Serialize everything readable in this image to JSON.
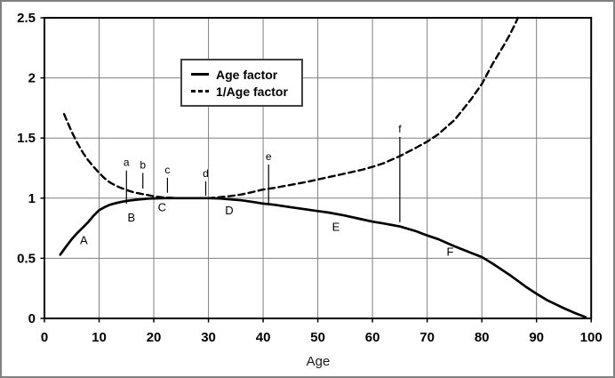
{
  "window": {
    "background": "#ffffff",
    "outer_border_color": "#808080"
  },
  "colors": {
    "gridline": "#808080",
    "frame": "#000000",
    "curve": "#000000",
    "text": "#000000"
  },
  "chart_data": {
    "type": "line",
    "title": "",
    "xlabel": "Age",
    "ylabel": "",
    "xlim": [
      0,
      100
    ],
    "ylim": [
      0,
      2.5
    ],
    "grid": true,
    "x_tick_labels": [
      "0",
      "10",
      "20",
      "30",
      "40",
      "50",
      "60",
      "70",
      "80",
      "90",
      "100"
    ],
    "x_tick_values": [
      0,
      10,
      20,
      30,
      40,
      50,
      60,
      70,
      80,
      90,
      100
    ],
    "y_tick_labels": [
      "0",
      "0.5",
      "1",
      "1.5",
      "2",
      "2.5"
    ],
    "y_tick_values": [
      0,
      0.5,
      1,
      1.5,
      2,
      2.5
    ],
    "legend": {
      "position": "top-center-inside",
      "items": [
        {
          "label": "Age factor",
          "style": "solid"
        },
        {
          "label": "1/Age factor",
          "style": "dashed"
        }
      ]
    },
    "series": [
      {
        "name": "Age factor",
        "style": "solid",
        "points": [
          [
            2.9,
            0.53
          ],
          [
            4,
            0.6
          ],
          [
            5,
            0.66
          ],
          [
            6,
            0.71
          ],
          [
            7,
            0.755
          ],
          [
            8,
            0.8
          ],
          [
            9,
            0.855
          ],
          [
            10,
            0.9
          ],
          [
            11,
            0.925
          ],
          [
            12,
            0.945
          ],
          [
            13,
            0.958
          ],
          [
            14,
            0.968
          ],
          [
            15,
            0.976
          ],
          [
            16,
            0.983
          ],
          [
            17,
            0.988
          ],
          [
            18,
            0.992
          ],
          [
            19,
            0.996
          ],
          [
            20,
            0.998
          ],
          [
            22,
            1.0
          ],
          [
            25,
            1.0
          ],
          [
            30,
            1.0
          ],
          [
            32,
            0.998
          ],
          [
            34,
            0.99
          ],
          [
            36,
            0.982
          ],
          [
            38,
            0.97
          ],
          [
            40,
            0.955
          ],
          [
            42,
            0.945
          ],
          [
            45,
            0.925
          ],
          [
            48,
            0.905
          ],
          [
            50,
            0.893
          ],
          [
            52,
            0.88
          ],
          [
            55,
            0.855
          ],
          [
            58,
            0.825
          ],
          [
            60,
            0.805
          ],
          [
            62,
            0.79
          ],
          [
            65,
            0.765
          ],
          [
            68,
            0.725
          ],
          [
            70,
            0.69
          ],
          [
            72,
            0.66
          ],
          [
            75,
            0.6
          ],
          [
            78,
            0.545
          ],
          [
            80,
            0.51
          ],
          [
            82,
            0.455
          ],
          [
            85,
            0.365
          ],
          [
            88,
            0.265
          ],
          [
            90,
            0.205
          ],
          [
            92,
            0.15
          ],
          [
            95,
            0.085
          ],
          [
            97,
            0.045
          ],
          [
            99,
            0.01
          ]
        ]
      },
      {
        "name": "1/Age factor",
        "style": "dashed",
        "points": [
          [
            3.6,
            1.7
          ],
          [
            4,
            1.655
          ],
          [
            5,
            1.55
          ],
          [
            6,
            1.46
          ],
          [
            7,
            1.38
          ],
          [
            8,
            1.315
          ],
          [
            9,
            1.26
          ],
          [
            10,
            1.21
          ],
          [
            11,
            1.165
          ],
          [
            12,
            1.13
          ],
          [
            13,
            1.105
          ],
          [
            14,
            1.085
          ],
          [
            15,
            1.068
          ],
          [
            16,
            1.053
          ],
          [
            17,
            1.042
          ],
          [
            18,
            1.033
          ],
          [
            19,
            1.025
          ],
          [
            20,
            1.015
          ],
          [
            21,
            1.01
          ],
          [
            22,
            1.005
          ],
          [
            25,
            1.0
          ],
          [
            30,
            1.0
          ],
          [
            32,
            1.008
          ],
          [
            34,
            1.018
          ],
          [
            36,
            1.03
          ],
          [
            38,
            1.05
          ],
          [
            40,
            1.072
          ],
          [
            42,
            1.085
          ],
          [
            45,
            1.11
          ],
          [
            48,
            1.135
          ],
          [
            50,
            1.155
          ],
          [
            52,
            1.175
          ],
          [
            55,
            1.205
          ],
          [
            58,
            1.235
          ],
          [
            60,
            1.26
          ],
          [
            62,
            1.29
          ],
          [
            65,
            1.35
          ],
          [
            68,
            1.42
          ],
          [
            70,
            1.47
          ],
          [
            72,
            1.53
          ],
          [
            75,
            1.65
          ],
          [
            78,
            1.82
          ],
          [
            80,
            1.95
          ],
          [
            82,
            2.12
          ],
          [
            84,
            2.27
          ],
          [
            85,
            2.35
          ],
          [
            86,
            2.44
          ],
          [
            86.6,
            2.5
          ]
        ]
      }
    ],
    "point_markers": [
      {
        "label": "a",
        "x": 15,
        "y_top": 1.23,
        "y_bottom": 0.955
      },
      {
        "label": "b",
        "x": 18,
        "y_top": 1.21,
        "y_bottom": 1.08
      },
      {
        "label": "c",
        "x": 22.5,
        "y_top": 1.17,
        "y_bottom": 1.045
      },
      {
        "label": "d",
        "x": 29.5,
        "y_top": 1.14,
        "y_bottom": 1.02
      },
      {
        "label": "e",
        "x": 41,
        "y_top": 1.28,
        "y_bottom": 0.955
      },
      {
        "label": "f",
        "x": 65,
        "y_top": 1.51,
        "y_bottom": 0.8
      }
    ],
    "segment_labels": [
      {
        "label": "A",
        "x": 7.2,
        "y": 0.65
      },
      {
        "label": "B",
        "x": 15.9,
        "y": 0.84
      },
      {
        "label": "C",
        "x": 21.5,
        "y": 0.925
      },
      {
        "label": "D",
        "x": 33.8,
        "y": 0.9
      },
      {
        "label": "E",
        "x": 53.3,
        "y": 0.76
      },
      {
        "label": "F",
        "x": 74.2,
        "y": 0.555
      }
    ]
  }
}
